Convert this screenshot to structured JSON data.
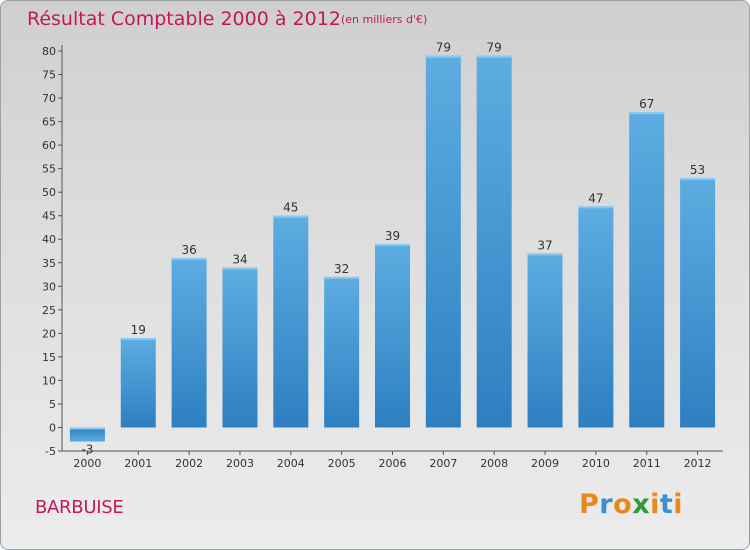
{
  "chart_data": {
    "type": "bar",
    "title": "Résultat Comptable 2000 à 2012",
    "subtitle": "(en milliers d'€)",
    "categories": [
      "2000",
      "2001",
      "2002",
      "2003",
      "2004",
      "2005",
      "2006",
      "2007",
      "2008",
      "2009",
      "2010",
      "2011",
      "2012"
    ],
    "values": [
      -3,
      19,
      36,
      34,
      45,
      32,
      39,
      79,
      79,
      37,
      47,
      67,
      53
    ],
    "value_labels": [
      "-3",
      "19",
      "36",
      "34",
      "45",
      "32",
      "39",
      "79",
      "79",
      "37",
      "47",
      "67",
      "53"
    ],
    "y_ticks": [
      -5,
      0,
      5,
      10,
      15,
      20,
      25,
      30,
      35,
      40,
      45,
      50,
      55,
      60,
      65,
      70,
      75,
      80
    ],
    "ylim": [
      -5,
      80
    ],
    "xlabel": "",
    "ylabel": "",
    "grid": false,
    "bar_color_light": "#5dade2",
    "bar_color_dark": "#2e7fc1"
  },
  "commune": "BARBUISE",
  "logo": {
    "letters": [
      "P",
      "r",
      "o",
      "x",
      "i",
      "t",
      "i"
    ],
    "colors": [
      "#e8891c",
      "#3a8fd1",
      "#e8891c",
      "#2e9a3a",
      "#e8891c",
      "#3a8fd1",
      "#e8891c"
    ]
  }
}
